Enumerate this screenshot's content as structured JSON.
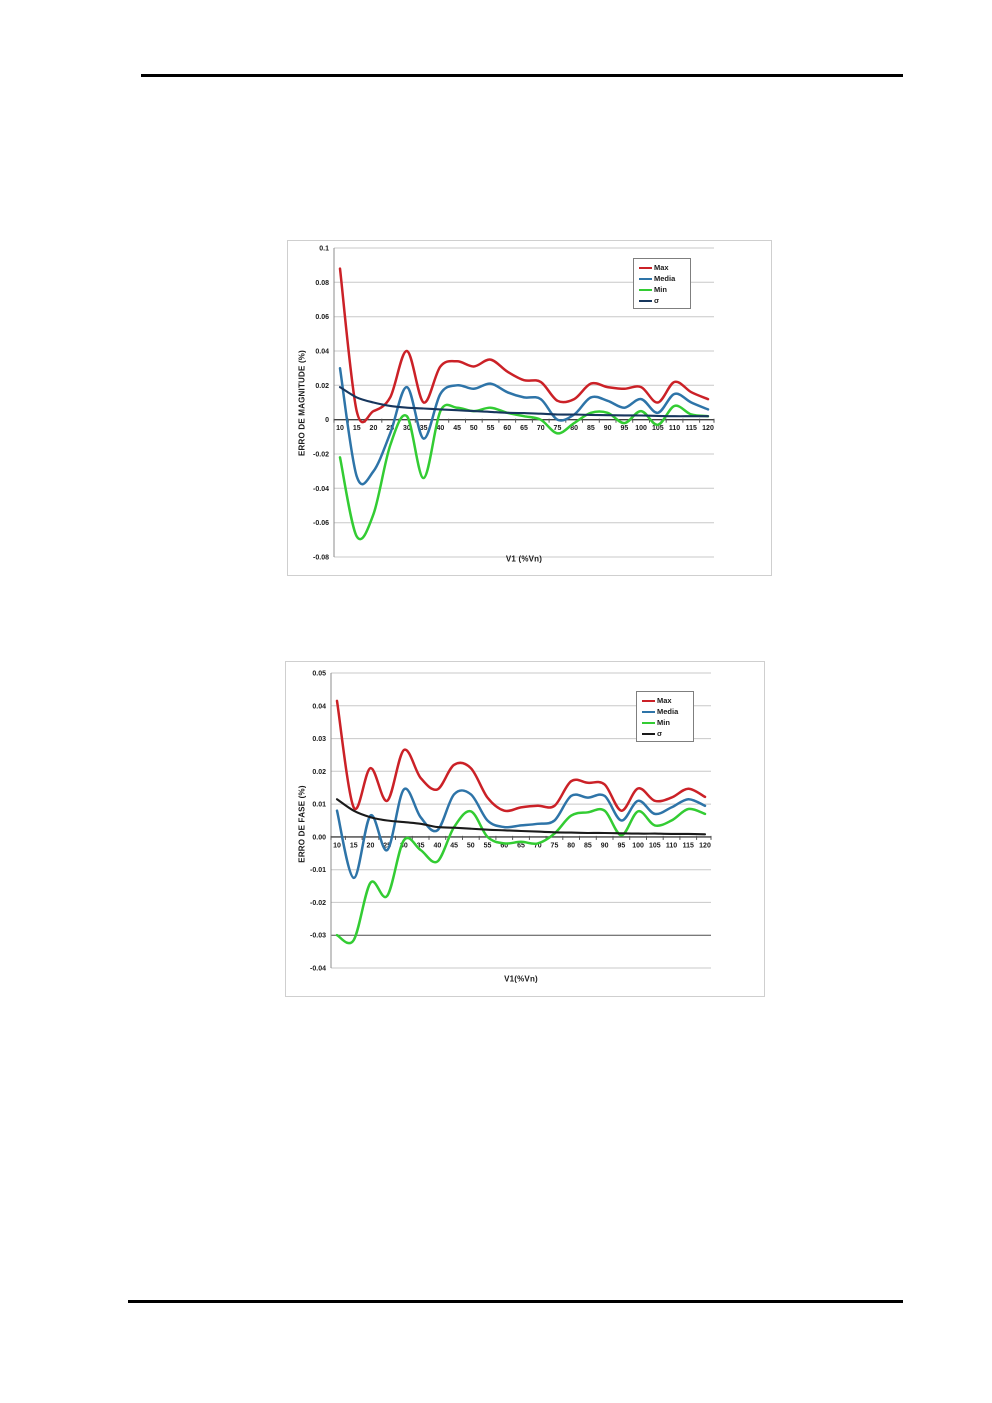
{
  "chart_data": [
    {
      "type": "line",
      "title": "",
      "xlabel": "V1 (%Vn)",
      "ylabel": "ERRO DE MAGNITUDE (%)",
      "x": [
        10,
        15,
        20,
        25,
        30,
        35,
        40,
        45,
        50,
        55,
        60,
        65,
        70,
        75,
        80,
        85,
        90,
        95,
        100,
        105,
        110,
        115,
        120
      ],
      "ylim": [
        -0.08,
        0.1
      ],
      "y_ticks": [
        0.1,
        0.08,
        0.06,
        0.04,
        0.02,
        0,
        -0.02,
        -0.04,
        -0.06,
        -0.08
      ],
      "y_tick_labels": [
        "0.1",
        "0.08",
        "0.06",
        "0.04",
        "0.02",
        "0",
        "-0.02",
        "-0.04",
        "-0.06",
        "-0.08"
      ],
      "grid": "horizontal",
      "dark_gridlines": [],
      "legend_position": "upper-right",
      "series": [
        {
          "name": "Max",
          "color": "#cb2127",
          "values": [
            0.088,
            0.005,
            0.005,
            0.013,
            0.04,
            0.01,
            0.031,
            0.034,
            0.031,
            0.035,
            0.028,
            0.023,
            0.022,
            0.011,
            0.012,
            0.021,
            0.019,
            0.018,
            0.019,
            0.01,
            0.022,
            0.016,
            0.012
          ]
        },
        {
          "name": "Media",
          "color": "#2e74a8",
          "values": [
            0.03,
            -0.033,
            -0.03,
            -0.008,
            0.019,
            -0.011,
            0.015,
            0.02,
            0.018,
            0.021,
            0.016,
            0.013,
            0.012,
            0.0,
            0.003,
            0.013,
            0.011,
            0.007,
            0.012,
            0.004,
            0.015,
            0.01,
            0.006
          ]
        },
        {
          "name": "Min",
          "color": "#33cc33",
          "values": [
            -0.022,
            -0.068,
            -0.055,
            -0.015,
            0.002,
            -0.034,
            0.005,
            0.007,
            0.005,
            0.007,
            0.004,
            0.002,
            0.0,
            -0.008,
            -0.002,
            0.004,
            0.004,
            -0.002,
            0.005,
            -0.003,
            0.008,
            0.003,
            0.002
          ]
        },
        {
          "name": "σ",
          "color": "#17365d",
          "values": [
            0.019,
            0.013,
            0.01,
            0.008,
            0.007,
            0.0065,
            0.006,
            0.0055,
            0.005,
            0.0045,
            0.004,
            0.0038,
            0.0035,
            0.003,
            0.003,
            0.0028,
            0.0026,
            0.0025,
            0.0024,
            0.0022,
            0.002,
            0.002,
            0.002
          ]
        }
      ]
    },
    {
      "type": "line",
      "title": "",
      "xlabel": "V1(%Vn)",
      "ylabel": "ERRO DE FASE (%)",
      "x": [
        10,
        15,
        20,
        25,
        30,
        35,
        40,
        45,
        50,
        55,
        60,
        65,
        70,
        75,
        80,
        85,
        90,
        95,
        100,
        105,
        110,
        115,
        120
      ],
      "ylim": [
        -0.04,
        0.05
      ],
      "y_ticks": [
        0.05,
        0.04,
        0.03,
        0.02,
        0.01,
        0,
        -0.01,
        -0.02,
        -0.03,
        -0.04
      ],
      "y_tick_labels": [
        "0.05",
        "0.04",
        "0.03",
        "0.02",
        "0.01",
        "0.00",
        "-0.01",
        "-0.02",
        "-0.03",
        "-0.04"
      ],
      "grid": "horizontal",
      "dark_gridlines": [
        -0.03
      ],
      "legend_position": "upper-right",
      "series": [
        {
          "name": "Max",
          "color": "#cb2127",
          "values": [
            0.0415,
            0.009,
            0.021,
            0.011,
            0.0265,
            0.018,
            0.0145,
            0.022,
            0.021,
            0.012,
            0.008,
            0.009,
            0.0095,
            0.0095,
            0.017,
            0.0165,
            0.016,
            0.008,
            0.0148,
            0.011,
            0.012,
            0.0147,
            0.0122
          ]
        },
        {
          "name": "Media",
          "color": "#2e74a8",
          "values": [
            0.008,
            -0.0125,
            0.0065,
            -0.004,
            0.0145,
            0.006,
            0.002,
            0.013,
            0.013,
            0.005,
            0.003,
            0.0035,
            0.004,
            0.005,
            0.0125,
            0.012,
            0.0125,
            0.005,
            0.011,
            0.007,
            0.009,
            0.0115,
            0.0095
          ]
        },
        {
          "name": "Min",
          "color": "#33cc33",
          "values": [
            -0.03,
            -0.0315,
            -0.014,
            -0.018,
            -0.001,
            -0.004,
            -0.0075,
            0.003,
            0.0078,
            0.0,
            -0.002,
            -0.0015,
            -0.002,
            0.001,
            0.0065,
            0.0075,
            0.008,
            0.0005,
            0.0078,
            0.0035,
            0.005,
            0.0085,
            0.007
          ]
        },
        {
          "name": "σ",
          "color": "#1a1a1a",
          "values": [
            0.0115,
            0.008,
            0.006,
            0.005,
            0.0045,
            0.004,
            0.003,
            0.0028,
            0.0025,
            0.0022,
            0.002,
            0.0018,
            0.0016,
            0.0014,
            0.0013,
            0.0012,
            0.0012,
            0.0011,
            0.001,
            0.001,
            0.0009,
            0.0009,
            0.0008
          ]
        }
      ]
    }
  ],
  "style": {
    "gridline_color": "#c8c8c8",
    "dark_gridline_color": "#4d4d4d",
    "zero_axis_color": "#404040",
    "y_axis_line_color": "#8c8c8c",
    "tick_color": "#555555",
    "label_color": "#1a1a1a"
  }
}
